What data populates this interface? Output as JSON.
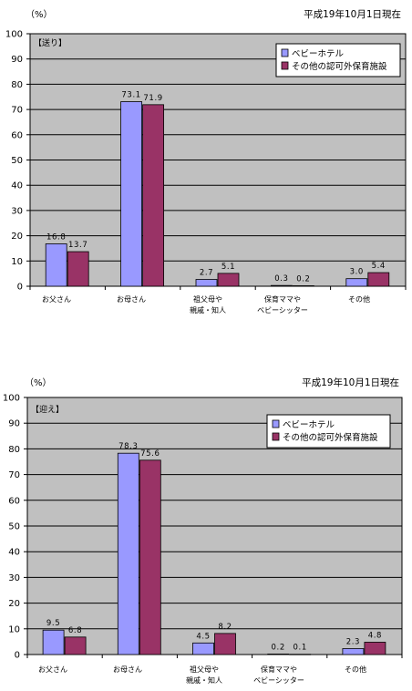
{
  "colors": {
    "plot_bg": "#c0c0c0",
    "series_1": "#9999ff",
    "series_2": "#993366",
    "axis": "#000000"
  },
  "chart_data": [
    {
      "type": "bar",
      "unit_label": "（%）",
      "date_note": "平成19年10月1日現在",
      "panel_label": "【送り】",
      "categories": [
        [
          "お父さん"
        ],
        [
          "お母さん"
        ],
        [
          "祖父母や",
          "親戚・知人"
        ],
        [
          "保育ママや",
          "ベビーシッター"
        ],
        [
          "その他"
        ]
      ],
      "series": [
        {
          "name": "ベビーホテル",
          "values": [
            16.8,
            73.1,
            2.7,
            0.3,
            3.0
          ],
          "labels": [
            "16.8",
            "73.1",
            "2.7",
            "0.3",
            "3.0"
          ]
        },
        {
          "name": "その他の認可外保育施設",
          "values": [
            13.7,
            71.9,
            5.1,
            0.2,
            5.4
          ],
          "labels": [
            "13.7",
            "71.9",
            "5.1",
            "0.2",
            "5.4"
          ]
        }
      ],
      "ylim": [
        0,
        100
      ],
      "yticks": [
        0,
        10,
        20,
        30,
        40,
        50,
        60,
        70,
        80,
        90,
        100
      ],
      "grid": true,
      "legend_position": "top-right"
    },
    {
      "type": "bar",
      "unit_label": "（%）",
      "date_note": "平成19年10月1日現在",
      "panel_label": "【迎え】",
      "categories": [
        [
          "お父さん"
        ],
        [
          "お母さん"
        ],
        [
          "祖父母や",
          "親戚・知人"
        ],
        [
          "保育ママや",
          "ベビーシッター"
        ],
        [
          "その他"
        ]
      ],
      "series": [
        {
          "name": "ベビーホテル",
          "values": [
            9.5,
            78.3,
            4.5,
            0.2,
            2.3
          ],
          "labels": [
            "9.5",
            "78.3",
            "4.5",
            "0.2",
            "2.3"
          ]
        },
        {
          "name": "その他の認可外保育施設",
          "values": [
            6.8,
            75.6,
            8.2,
            0.1,
            4.8
          ],
          "labels": [
            "6.8",
            "75.6",
            "8.2",
            "0.1",
            "4.8"
          ]
        }
      ],
      "ylim": [
        0,
        100
      ],
      "yticks": [
        0,
        10,
        20,
        30,
        40,
        50,
        60,
        70,
        80,
        90,
        100
      ],
      "grid": true,
      "legend_position": "top-right"
    }
  ]
}
